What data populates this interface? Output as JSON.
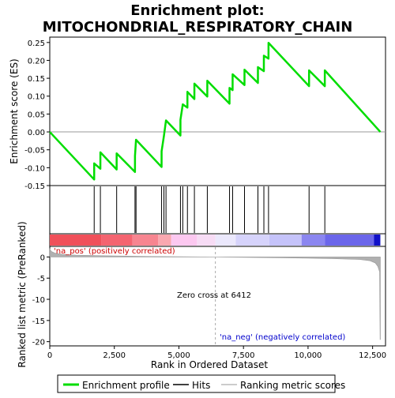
{
  "chart_data": {
    "type": "line",
    "title_line1": "Enrichment plot:",
    "title_line2": "MITOCHONDRIAL_RESPIRATORY_CHAIN",
    "xlabel": "Rank in Ordered Dataset",
    "ylabel_top": "Enrichment score (ES)",
    "ylabel_bottom": "Ranked list metric (PreRanked)",
    "xlim": [
      0,
      13000
    ],
    "x_ticks": [
      0,
      2500,
      5000,
      7500,
      10000,
      12500
    ],
    "x_tick_labels": [
      "0",
      "2,500",
      "5,000",
      "7,500",
      "10,000",
      "12,500"
    ],
    "es_ylim": [
      -0.15,
      0.265
    ],
    "es_ticks": [
      -0.15,
      -0.1,
      -0.05,
      0.0,
      0.05,
      0.1,
      0.15,
      0.2,
      0.25
    ],
    "es_tick_labels": [
      "-0.15",
      "-0.10",
      "-0.05",
      "0.00",
      "0.05",
      "0.10",
      "0.15",
      "0.20",
      "0.25"
    ],
    "metric_ylim": [
      -21,
      2.5
    ],
    "metric_ticks": [
      0,
      -5,
      -10,
      -15,
      -20
    ],
    "metric_tick_labels": [
      "0",
      "-5",
      "-10",
      "-15",
      "-20"
    ],
    "total_ranks": 12800,
    "zero_cross_rank": 6412,
    "zero_cross_label": "Zero cross at 6412",
    "pos_label": "'na_pos' (positively correlated)",
    "neg_label": "'na_neg' (negatively correlated)",
    "hits": [
      1720,
      1960,
      2590,
      3300,
      3340,
      4330,
      4420,
      4500,
      5060,
      5150,
      5330,
      5600,
      6100,
      6960,
      7080,
      7540,
      8060,
      8290,
      8470,
      10040,
      10650
    ],
    "es_points": [
      [
        0,
        0.0
      ],
      [
        1719,
        -0.133
      ],
      [
        1720,
        -0.088
      ],
      [
        1959,
        -0.103
      ],
      [
        1960,
        -0.057
      ],
      [
        2589,
        -0.105
      ],
      [
        2590,
        -0.06
      ],
      [
        3299,
        -0.112
      ],
      [
        3300,
        -0.067
      ],
      [
        3340,
        -0.022
      ],
      [
        4329,
        -0.098
      ],
      [
        4330,
        -0.054
      ],
      [
        4420,
        -0.011
      ],
      [
        4500,
        0.032
      ],
      [
        5059,
        -0.01
      ],
      [
        5060,
        0.034
      ],
      [
        5150,
        0.077
      ],
      [
        5329,
        0.068
      ],
      [
        5330,
        0.112
      ],
      [
        5599,
        0.092
      ],
      [
        5600,
        0.135
      ],
      [
        6099,
        0.099
      ],
      [
        6100,
        0.143
      ],
      [
        6959,
        0.079
      ],
      [
        6960,
        0.123
      ],
      [
        7079,
        0.117
      ],
      [
        7080,
        0.161
      ],
      [
        7539,
        0.131
      ],
      [
        7540,
        0.174
      ],
      [
        8059,
        0.137
      ],
      [
        8060,
        0.181
      ],
      [
        8289,
        0.17
      ],
      [
        8290,
        0.213
      ],
      [
        8469,
        0.205
      ],
      [
        8470,
        0.249
      ],
      [
        10039,
        0.128
      ],
      [
        10040,
        0.172
      ],
      [
        10649,
        0.128
      ],
      [
        10650,
        0.172
      ],
      [
        12800,
        0.0
      ]
    ],
    "metric_curve": [
      [
        0,
        1.9
      ],
      [
        60,
        1.3
      ],
      [
        200,
        0.9
      ],
      [
        500,
        0.6
      ],
      [
        1000,
        0.45
      ],
      [
        2000,
        0.3
      ],
      [
        3000,
        0.2
      ],
      [
        4000,
        0.12
      ],
      [
        5000,
        0.06
      ],
      [
        6000,
        0.02
      ],
      [
        6412,
        0.0
      ],
      [
        7000,
        -0.05
      ],
      [
        8000,
        -0.12
      ],
      [
        9000,
        -0.2
      ],
      [
        10000,
        -0.28
      ],
      [
        11000,
        -0.4
      ],
      [
        12000,
        -0.6
      ],
      [
        12400,
        -0.9
      ],
      [
        12600,
        -1.4
      ],
      [
        12700,
        -2.2
      ],
      [
        12770,
        -3.5
      ],
      [
        12790,
        -19.5
      ],
      [
        12800,
        -19.5
      ]
    ],
    "color_bar_segments": [
      {
        "start": 0,
        "end": 2000,
        "color": "#f0505a"
      },
      {
        "start": 2000,
        "end": 3200,
        "color": "#f46470"
      },
      {
        "start": 3200,
        "end": 4200,
        "color": "#f78590"
      },
      {
        "start": 4200,
        "end": 4700,
        "color": "#faa8b0"
      },
      {
        "start": 4700,
        "end": 5700,
        "color": "#fcc8f0"
      },
      {
        "start": 5700,
        "end": 6412,
        "color": "#f7dcf5"
      },
      {
        "start": 6412,
        "end": 7200,
        "color": "#ebe8fc"
      },
      {
        "start": 7200,
        "end": 8500,
        "color": "#d6d3fb"
      },
      {
        "start": 8500,
        "end": 9750,
        "color": "#c5c3fa"
      },
      {
        "start": 9750,
        "end": 10650,
        "color": "#8b86f0"
      },
      {
        "start": 10650,
        "end": 12550,
        "color": "#6b66ea"
      },
      {
        "start": 12550,
        "end": 12800,
        "color": "#1010c8"
      }
    ],
    "colors": {
      "es_line": "#00dd00",
      "hit": "#000000",
      "metric_fill": "#b0b0b0",
      "zero_cross_line": "#aaaaaa",
      "pos_label": "#cc0000",
      "neg_label": "#0000cc"
    },
    "legend": {
      "items": [
        {
          "label": "Enrichment profile",
          "kind": "line",
          "color": "#00dd00"
        },
        {
          "label": "Hits",
          "kind": "line",
          "color": "#000000"
        },
        {
          "label": "Ranking metric scores",
          "kind": "line",
          "color": "#bbbbbb"
        }
      ]
    }
  }
}
